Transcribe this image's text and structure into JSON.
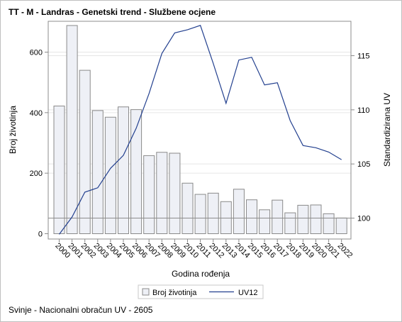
{
  "title": "TT - M - Landras - Genetski trend - Službene ocjene",
  "footnote": "Svinje - Nacionalni obračun UV - 2605",
  "chart_data": {
    "type": "bar",
    "title": "TT - M - Landras - Genetski trend - Službene ocjene",
    "xlabel": "Godina rođenja",
    "ylabel": "Broj životinja",
    "y2label": "Standardizirana UV",
    "categories": [
      "2000",
      "2001",
      "2002",
      "2003",
      "2004",
      "2005",
      "2006",
      "2007",
      "2008",
      "2009",
      "2010",
      "2011",
      "2012",
      "2013",
      "2014",
      "2015",
      "2016",
      "2017",
      "2018",
      "2019",
      "2020",
      "2021",
      "2022"
    ],
    "series": [
      {
        "name": "Broj životinja",
        "type": "bar",
        "axis": "left",
        "values": [
          422,
          688,
          540,
          407,
          385,
          419,
          410,
          258,
          269,
          266,
          167,
          130,
          134,
          106,
          147,
          112,
          79,
          111,
          69,
          94,
          95,
          66,
          52
        ],
        "color": "#eef0f6"
      },
      {
        "name": "UV12",
        "type": "line",
        "axis": "right",
        "values": [
          98.5,
          100.1,
          102.4,
          102.8,
          104.6,
          105.8,
          108.3,
          111.5,
          115.2,
          117.1,
          117.4,
          117.8,
          114.3,
          110.6,
          114.6,
          114.85,
          112.3,
          112.5,
          109.0,
          106.7,
          106.5,
          106.1,
          105.4
        ],
        "color": "#23408f"
      }
    ],
    "ylim": [
      0,
      700
    ],
    "y2lim": [
      98.5,
      118
    ],
    "yticks": [
      0,
      200,
      400,
      600
    ],
    "y2ticks": [
      100,
      105,
      110,
      115
    ],
    "reference_line_y2": 100,
    "legend_position": "bottom",
    "grid": true
  }
}
